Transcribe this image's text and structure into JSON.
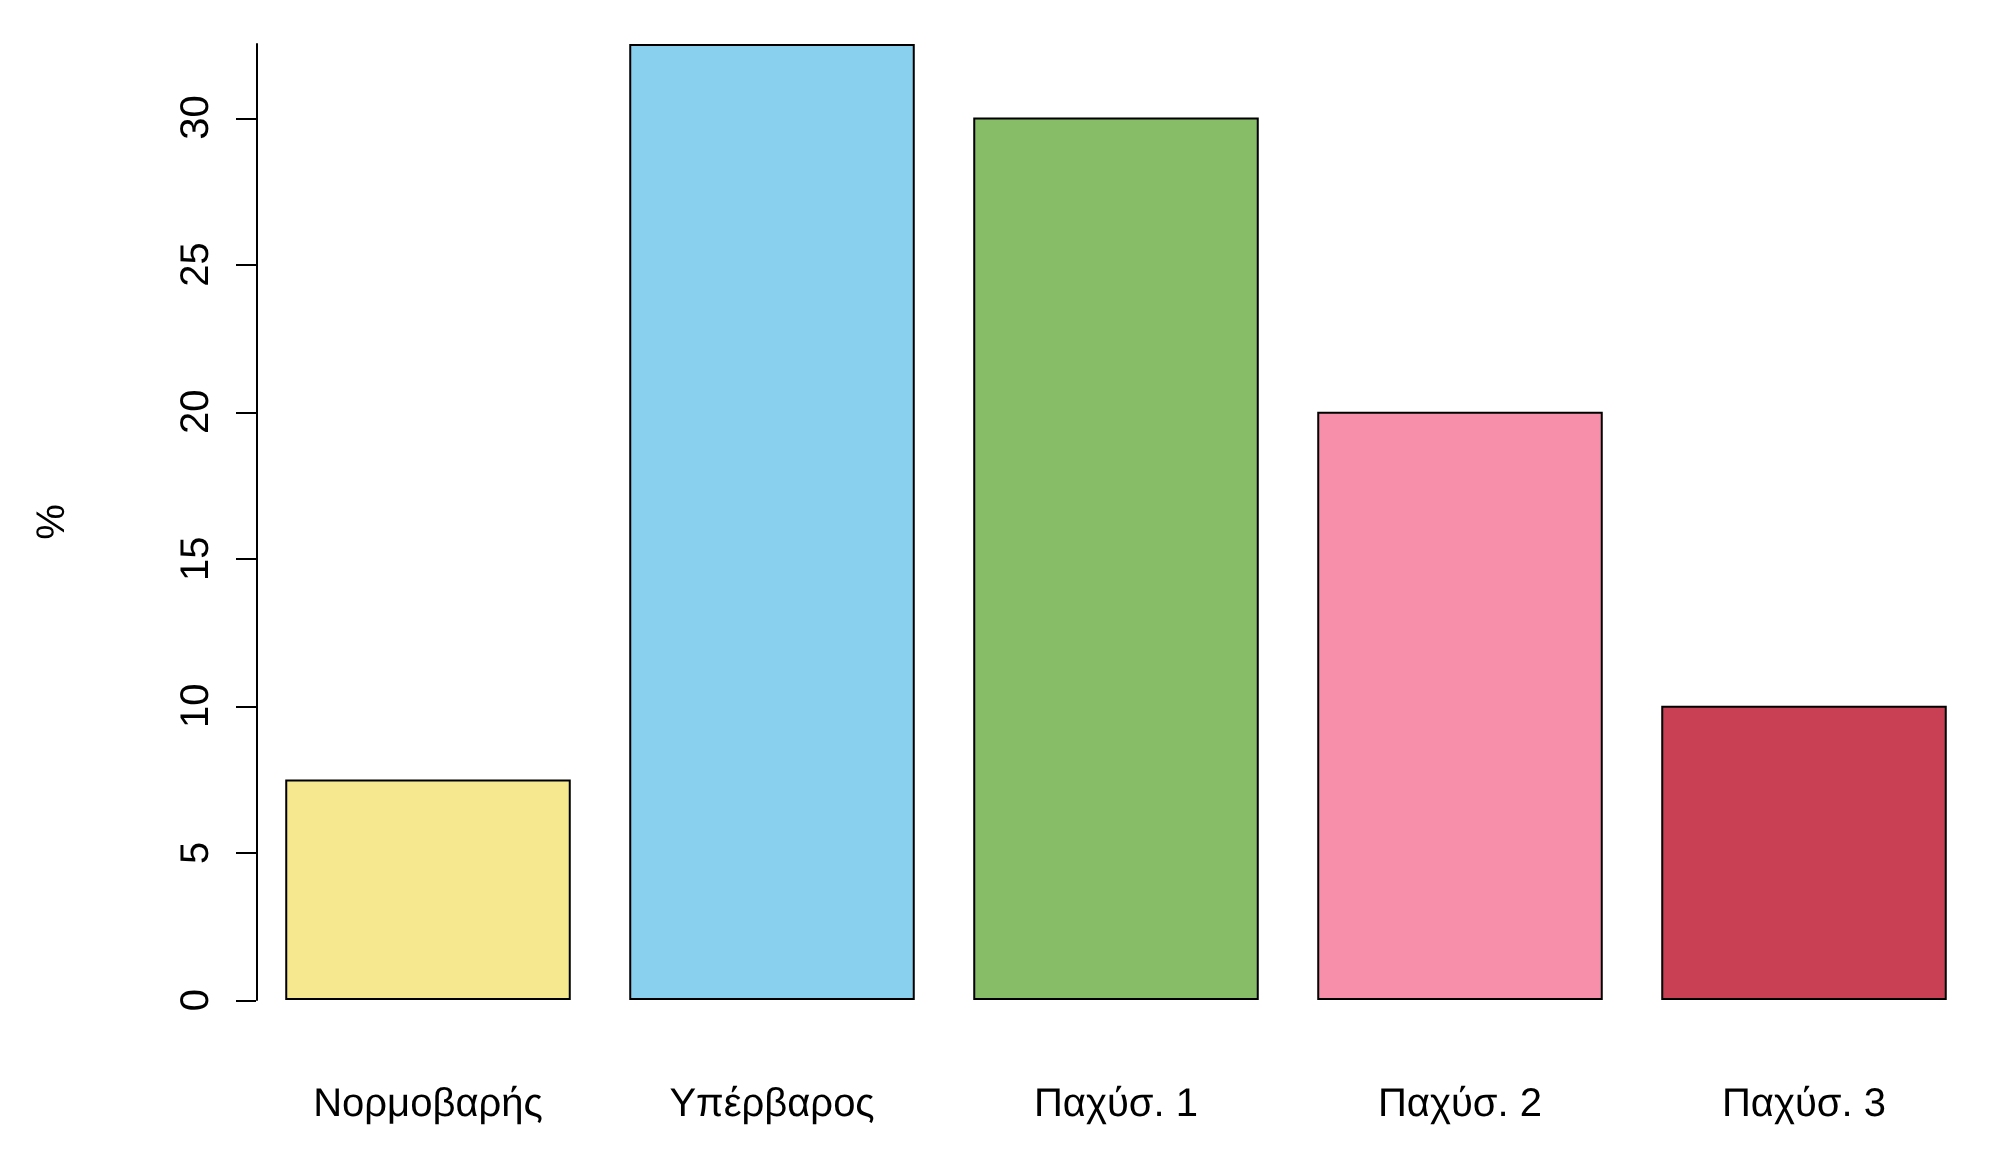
{
  "chart_data": {
    "type": "bar",
    "ylabel": "%",
    "categories": [
      "Νορμοβαρής",
      "Υπέρβαρος",
      "Παχύσ. 1",
      "Παχύσ. 2",
      "Παχύσ. 3"
    ],
    "values": [
      7.5,
      32.5,
      30,
      20,
      10
    ],
    "colors": [
      "#f5e88e",
      "#89d0ef",
      "#86bd66",
      "#f78fab",
      "#c94055"
    ],
    "ylim": [
      0,
      32.5
    ],
    "yticks": [
      0,
      5,
      10,
      15,
      20,
      25,
      30
    ],
    "grid": false
  }
}
